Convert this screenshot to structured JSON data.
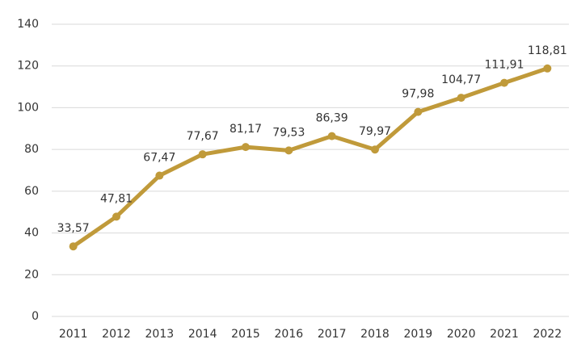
{
  "chart_data": {
    "type": "line",
    "categories": [
      "2011",
      "2012",
      "2013",
      "2014",
      "2015",
      "2016",
      "2017",
      "2018",
      "2019",
      "2020",
      "2021",
      "2022"
    ],
    "series": [
      {
        "color": "#c09a3a",
        "values": [
          33.57,
          47.81,
          67.47,
          77.67,
          81.17,
          79.53,
          86.39,
          79.97,
          97.98,
          104.77,
          111.91,
          118.81
        ],
        "value_labels": [
          "33,57",
          "47,81",
          "67,47",
          "77,67",
          "81,17",
          "79,53",
          "86,39",
          "79,97",
          "97,98",
          "104,77",
          "111,91",
          "118,81"
        ]
      }
    ],
    "ylim": [
      0,
      140
    ],
    "yticks": [
      0,
      20,
      40,
      60,
      80,
      100,
      120,
      140
    ],
    "grid": true
  }
}
